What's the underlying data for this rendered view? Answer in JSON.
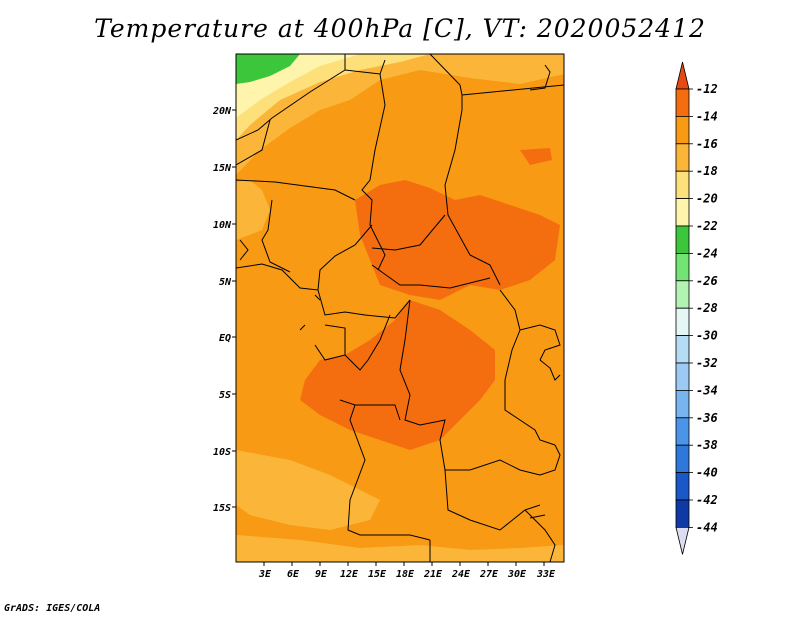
{
  "title": "Temperature at 400hPa [C], VT: 2020052412",
  "footer": "GrADS: IGES/COLA",
  "lat_ticks": [
    "20N",
    "15N",
    "10N",
    "5N",
    "EQ",
    "5S",
    "10S",
    "15S"
  ],
  "lon_ticks": [
    "3E",
    "6E",
    "9E",
    "12E",
    "15E",
    "18E",
    "21E",
    "24E",
    "27E",
    "30E",
    "33E"
  ],
  "colorbar": {
    "labels": [
      "-12",
      "-14",
      "-16",
      "-18",
      "-20",
      "-22",
      "-24",
      "-26",
      "-28",
      "-30",
      "-32",
      "-34",
      "-36",
      "-38",
      "-40",
      "-42",
      "-44"
    ],
    "colors": [
      "#e64a13",
      "#f46e0f",
      "#f89a14",
      "#fbb63a",
      "#fde07a",
      "#fef4ac",
      "#3cc63c",
      "#73e373",
      "#b2f2b2",
      "#e4f7f5",
      "#b6dcf5",
      "#9ccaf4",
      "#78b4f0",
      "#4a95e8",
      "#2e77db",
      "#1a57c7",
      "#0f3aa5",
      "#0c1872",
      "#dcdcf2"
    ]
  },
  "map": {
    "lon_range": [
      0,
      35
    ],
    "lat_range": [
      -20,
      25
    ]
  }
}
